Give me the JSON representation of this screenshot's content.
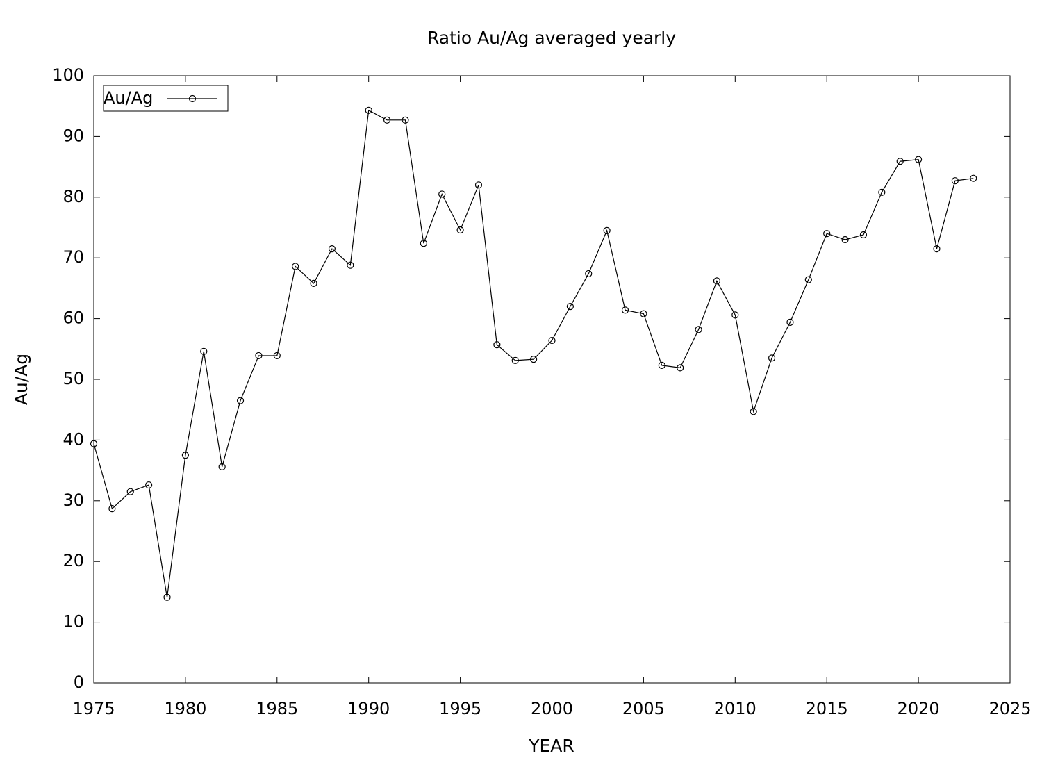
{
  "chart_data": {
    "type": "line",
    "title": "Ratio Au/Ag averaged yearly",
    "x_label": "YEAR",
    "y_label": "Au/Ag",
    "x": [
      1975,
      1976,
      1977,
      1978,
      1979,
      1980,
      1981,
      1982,
      1983,
      1984,
      1985,
      1986,
      1987,
      1988,
      1989,
      1990,
      1991,
      1992,
      1993,
      1994,
      1995,
      1996,
      1997,
      1998,
      1999,
      2000,
      2001,
      2002,
      2003,
      2004,
      2005,
      2006,
      2007,
      2008,
      2009,
      2010,
      2011,
      2012,
      2013,
      2014,
      2015,
      2016,
      2017,
      2018,
      2019,
      2020,
      2021,
      2022,
      2023
    ],
    "series": [
      {
        "name": "Au/Ag",
        "color": "#000000",
        "marker": "circle",
        "values": [
          39.4,
          28.7,
          31.5,
          32.6,
          14.1,
          37.5,
          54.6,
          35.6,
          46.5,
          53.9,
          53.9,
          68.6,
          65.8,
          71.5,
          68.8,
          94.3,
          92.7,
          92.7,
          72.4,
          80.5,
          74.6,
          82.0,
          55.7,
          53.1,
          53.3,
          56.4,
          62.0,
          67.4,
          74.5,
          61.4,
          60.8,
          52.3,
          51.9,
          58.2,
          66.2,
          60.6,
          44.7,
          53.5,
          59.4,
          66.4,
          74.0,
          73.0,
          73.8,
          80.8,
          85.9,
          86.2,
          71.5,
          82.7,
          83.1
        ]
      }
    ],
    "xlim": [
      1975,
      2025
    ],
    "xticks": [
      1975,
      1980,
      1985,
      1990,
      1995,
      2000,
      2005,
      2010,
      2015,
      2020,
      2025
    ],
    "ylim": [
      0,
      100
    ],
    "yticks": [
      0,
      10,
      20,
      30,
      40,
      50,
      60,
      70,
      80,
      90,
      100
    ],
    "grid": false,
    "legend": "top-left"
  }
}
